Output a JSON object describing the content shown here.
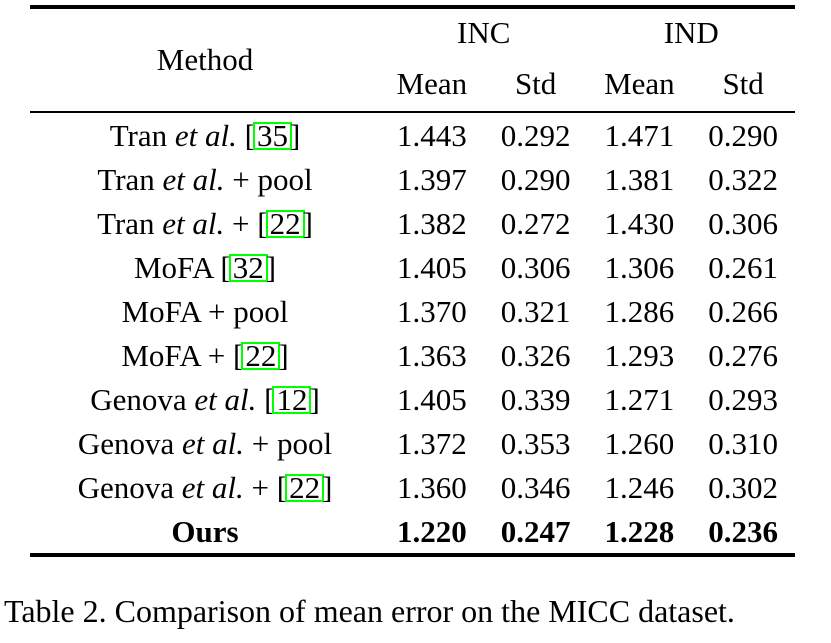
{
  "colors": {
    "citation_box_green": "#00ff00",
    "rule_black": "#000000",
    "background": "#ffffff"
  },
  "table": {
    "header": {
      "method_label": "Method",
      "groups": [
        {
          "label": "INC"
        },
        {
          "label": "IND"
        }
      ],
      "subheaders": [
        "Mean",
        "Std",
        "Mean",
        "Std"
      ]
    },
    "rows": [
      {
        "method": [
          {
            "t": "Tran "
          },
          {
            "t": "et al.",
            "style": "italic"
          },
          {
            "t": " ["
          },
          {
            "t": "35",
            "style": "cite"
          },
          {
            "t": "]"
          }
        ],
        "values": [
          "1.443",
          "0.292",
          "1.471",
          "0.290"
        ],
        "bold": false
      },
      {
        "method": [
          {
            "t": "Tran "
          },
          {
            "t": "et al.",
            "style": "italic"
          },
          {
            "t": " + pool"
          }
        ],
        "values": [
          "1.397",
          "0.290",
          "1.381",
          "0.322"
        ],
        "bold": false
      },
      {
        "method": [
          {
            "t": "Tran "
          },
          {
            "t": "et al.",
            "style": "italic"
          },
          {
            "t": " + ["
          },
          {
            "t": "22",
            "style": "cite"
          },
          {
            "t": "]"
          }
        ],
        "values": [
          "1.382",
          "0.272",
          "1.430",
          "0.306"
        ],
        "bold": false
      },
      {
        "method": [
          {
            "t": "MoFA ["
          },
          {
            "t": "32",
            "style": "cite"
          },
          {
            "t": "]"
          }
        ],
        "values": [
          "1.405",
          "0.306",
          "1.306",
          "0.261"
        ],
        "bold": false
      },
      {
        "method": [
          {
            "t": "MoFA + pool"
          }
        ],
        "values": [
          "1.370",
          "0.321",
          "1.286",
          "0.266"
        ],
        "bold": false
      },
      {
        "method": [
          {
            "t": "MoFA + ["
          },
          {
            "t": "22",
            "style": "cite"
          },
          {
            "t": "]"
          }
        ],
        "values": [
          "1.363",
          "0.326",
          "1.293",
          "0.276"
        ],
        "bold": false
      },
      {
        "method": [
          {
            "t": "Genova "
          },
          {
            "t": "et al.",
            "style": "italic"
          },
          {
            "t": " ["
          },
          {
            "t": "12",
            "style": "cite"
          },
          {
            "t": "]"
          }
        ],
        "values": [
          "1.405",
          "0.339",
          "1.271",
          "0.293"
        ],
        "bold": false
      },
      {
        "method": [
          {
            "t": "Genova "
          },
          {
            "t": "et al.",
            "style": "italic"
          },
          {
            "t": " + pool"
          }
        ],
        "values": [
          "1.372",
          "0.353",
          "1.260",
          "0.310"
        ],
        "bold": false
      },
      {
        "method": [
          {
            "t": "Genova "
          },
          {
            "t": "et al.",
            "style": "italic"
          },
          {
            "t": " + ["
          },
          {
            "t": "22",
            "style": "cite"
          },
          {
            "t": "]"
          }
        ],
        "values": [
          "1.360",
          "0.346",
          "1.246",
          "0.302"
        ],
        "bold": false
      },
      {
        "method": [
          {
            "t": "Ours"
          }
        ],
        "values": [
          "1.220",
          "0.247",
          "1.228",
          "0.236"
        ],
        "bold": true
      }
    ]
  },
  "caption": {
    "text": "Table 2. Comparison of mean error on the MICC dataset."
  }
}
